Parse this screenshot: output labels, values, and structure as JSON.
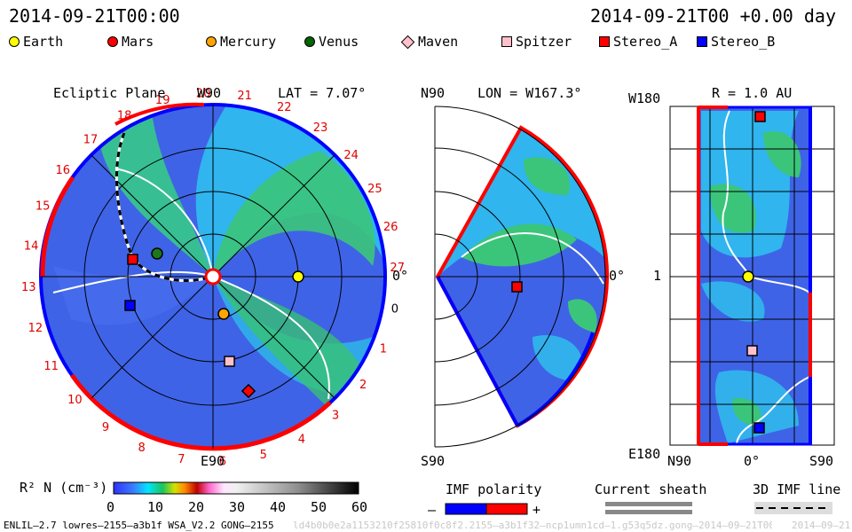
{
  "header": {
    "datetime": "2014-09-21T00:00",
    "offset": "2014-09-21T00 +0.00 day"
  },
  "legend": [
    {
      "label": "Earth",
      "shape": "circle",
      "color": "#ffff00"
    },
    {
      "label": "Mars",
      "shape": "circle",
      "color": "#ff0000"
    },
    {
      "label": "Mercury",
      "shape": "circle",
      "color": "#ffa500"
    },
    {
      "label": "Venus",
      "shape": "circle",
      "color": "#006400"
    },
    {
      "label": "Maven",
      "shape": "diamond",
      "color": "#ffc0cb"
    },
    {
      "label": "Spitzer",
      "shape": "square",
      "color": "#ffc0cb"
    },
    {
      "label": "Stereo_A",
      "shape": "square",
      "color": "#ff0000"
    },
    {
      "label": "Stereo_B",
      "shape": "square",
      "color": "#0000ff"
    }
  ],
  "ecliptic": {
    "title": "Ecliptic Plane",
    "top_label": "W90",
    "lat_label": "LAT = 7.07°",
    "right_label": "0°",
    "bottom_label": "E90",
    "numbers": [
      "20",
      "21",
      "22",
      "23",
      "24",
      "25",
      "26",
      "27",
      "0",
      "1",
      "2",
      "3",
      "4",
      "5",
      "6",
      "7",
      "8",
      "9",
      "10",
      "11",
      "12",
      "13",
      "14",
      "15",
      "16",
      "17",
      "18",
      "19"
    ]
  },
  "meridional": {
    "top_label": "N90",
    "lon_label": "LON = W167.3°",
    "right_label": "0°",
    "bottom_label": "S90"
  },
  "radial": {
    "r_label": "R = 1.0 AU",
    "top_left": "W180",
    "mid_left": "1",
    "bottom_left": "E180",
    "x_left": "N90",
    "x_mid": "0°",
    "x_right": "S90"
  },
  "colorbar": {
    "label": "R² N (cm⁻³)",
    "ticks": [
      "0",
      "10",
      "20",
      "30",
      "40",
      "50",
      "60"
    ]
  },
  "key": {
    "imf_title": "IMF polarity",
    "minus": "–",
    "plus": "+",
    "sheath_title": "Current sheath",
    "imf3d_title": "3D IMF line"
  },
  "footer": {
    "model": "ENLIL–2.7 lowres–2155–a3b1f WSA_V2.2 GONG–2155",
    "runid": "ld4b0b0e2a1153210f25810f0c8f2.2155–a3b1f32–ncp1umn1cd–1.g53q5dz.gong–2014–09–21T00",
    "stamp": "2014–09–21"
  },
  "colors": {
    "red": "#ff0000",
    "blue": "#0000ff",
    "cyan": "#00d4ff",
    "green": "#22c24a",
    "deepblue": "#3050e0"
  }
}
